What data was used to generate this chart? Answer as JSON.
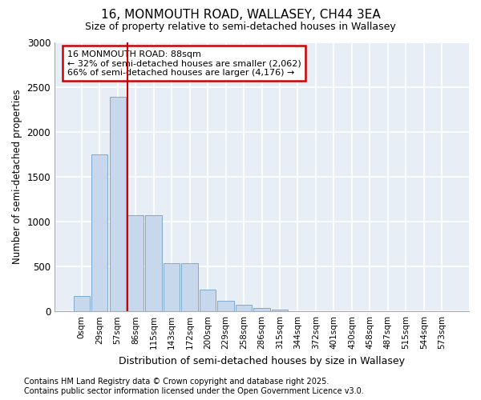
{
  "title": "16, MONMOUTH ROAD, WALLASEY, CH44 3EA",
  "subtitle": "Size of property relative to semi-detached houses in Wallasey",
  "xlabel": "Distribution of semi-detached houses by size in Wallasey",
  "ylabel": "Number of semi-detached properties",
  "bar_color": "#c8d8ec",
  "bar_edge_color": "#7fa8cc",
  "categories": [
    "0sqm",
    "29sqm",
    "57sqm",
    "86sqm",
    "115sqm",
    "143sqm",
    "172sqm",
    "200sqm",
    "229sqm",
    "258sqm",
    "286sqm",
    "315sqm",
    "344sqm",
    "372sqm",
    "401sqm",
    "430sqm",
    "458sqm",
    "487sqm",
    "515sqm",
    "544sqm",
    "573sqm"
  ],
  "values": [
    175,
    1750,
    2390,
    1070,
    1070,
    540,
    540,
    240,
    115,
    75,
    40,
    20,
    0,
    0,
    0,
    0,
    0,
    0,
    0,
    0,
    0
  ],
  "ylim": [
    0,
    3000
  ],
  "yticks": [
    0,
    500,
    1000,
    1500,
    2000,
    2500,
    3000
  ],
  "property_bin_index": 3,
  "annotation_text": "16 MONMOUTH ROAD: 88sqm\n← 32% of semi-detached houses are smaller (2,062)\n66% of semi-detached houses are larger (4,176) →",
  "annotation_box_color": "#ffffff",
  "annotation_box_edge": "#cc0000",
  "vline_color": "#cc0000",
  "footnote": "Contains HM Land Registry data © Crown copyright and database right 2025.\nContains public sector information licensed under the Open Government Licence v3.0.",
  "background_color": "#ffffff",
  "plot_background": "#e8eef5",
  "grid_color": "#ffffff"
}
